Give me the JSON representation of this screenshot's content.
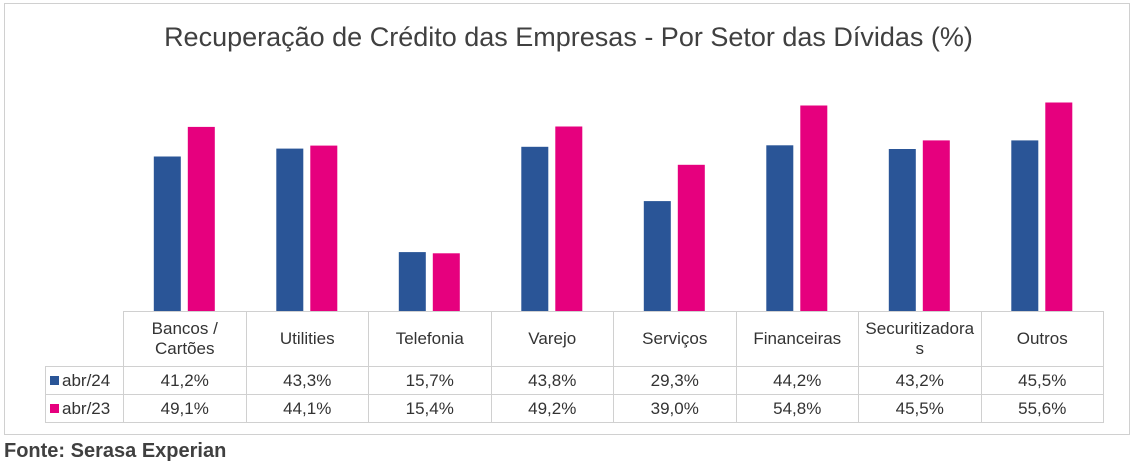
{
  "chart_data": {
    "type": "bar",
    "title": "Recuperação de Crédito das Empresas - Por Setor das Dívidas (%)",
    "categories": [
      "Bancos / Cartões",
      "Utilities",
      "Telefonia",
      "Varejo",
      "Serviços",
      "Financeiras",
      "Securitizadoras",
      "Outros"
    ],
    "category_labels": [
      "Bancos /\nCartões",
      "Utilities",
      "Telefonia",
      "Varejo",
      "Serviços",
      "Financeiras",
      "Securitizadora\ns",
      "Outros"
    ],
    "series": [
      {
        "name": "abr/24",
        "color": "#2a5597",
        "values": [
          41.2,
          43.3,
          15.7,
          43.8,
          29.3,
          44.2,
          43.2,
          45.5
        ],
        "labels": [
          "41,2%",
          "43,3%",
          "15,7%",
          "43,8%",
          "29,3%",
          "44,2%",
          "43,2%",
          "45,5%"
        ]
      },
      {
        "name": "abr/23",
        "color": "#e6007e",
        "values": [
          49.1,
          44.1,
          15.4,
          49.2,
          39.0,
          54.8,
          45.5,
          55.6
        ],
        "labels": [
          "49,1%",
          "44,1%",
          "15,4%",
          "49,2%",
          "39,0%",
          "54,8%",
          "45,5%",
          "55,6%"
        ]
      }
    ],
    "ylim": [
      0,
      60
    ],
    "xlabel": "",
    "ylabel": "",
    "grid": false,
    "legend": "data-table-left"
  },
  "source": "Fonte: Serasa Experian"
}
